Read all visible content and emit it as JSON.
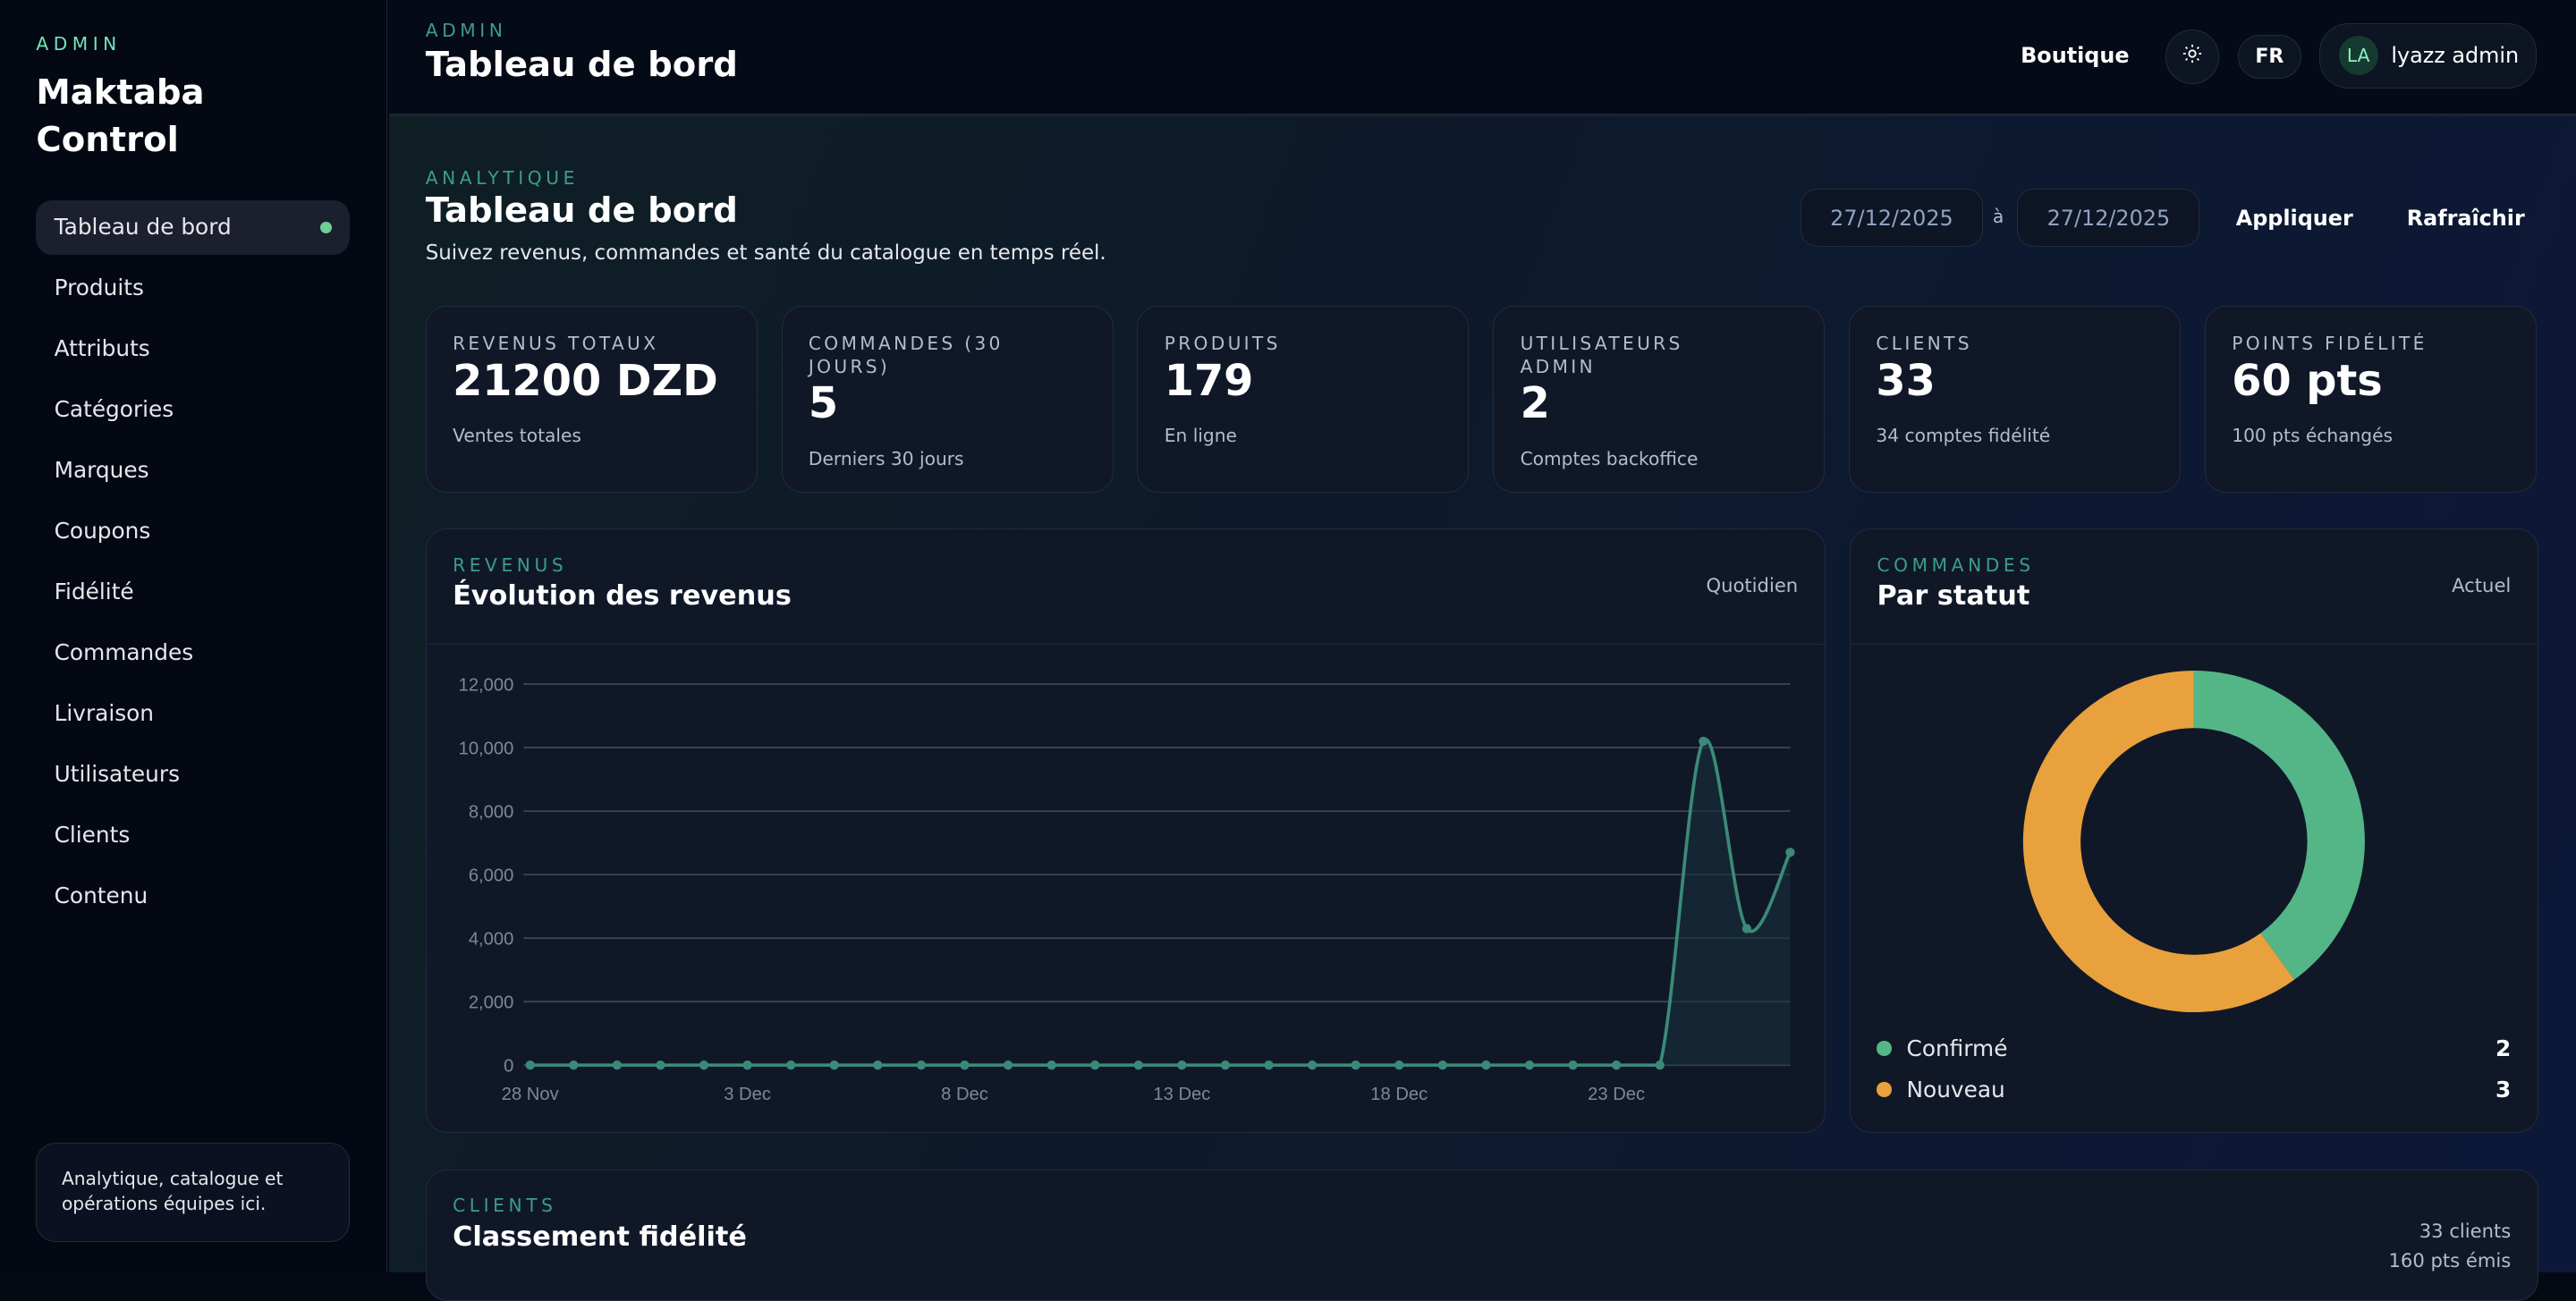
{
  "sidebar": {
    "kicker": "ADMIN",
    "title": "Maktaba Control",
    "items": [
      {
        "label": "Tableau de bord",
        "active": true
      },
      {
        "label": "Produits"
      },
      {
        "label": "Attributs"
      },
      {
        "label": "Catégories"
      },
      {
        "label": "Marques"
      },
      {
        "label": "Coupons"
      },
      {
        "label": "Fidélité"
      },
      {
        "label": "Commandes"
      },
      {
        "label": "Livraison"
      },
      {
        "label": "Utilisateurs"
      },
      {
        "label": "Clients"
      },
      {
        "label": "Contenu"
      }
    ],
    "note": "Analytique, catalogue et opérations équipes ici."
  },
  "topbar": {
    "kicker": "ADMIN",
    "title": "Tableau de bord",
    "shop": "Boutique",
    "theme_icon": "sun-icon",
    "lang": "FR",
    "user_initials": "LA",
    "user_name": "lyazz admin"
  },
  "page": {
    "kicker": "ANALYTIQUE",
    "title": "Tableau de bord",
    "subtitle": "Suivez revenus, commandes et santé du catalogue en temps réel.",
    "date_from": "27/12/2025",
    "date_sep": "à",
    "date_to": "27/12/2025",
    "apply": "Appliquer",
    "refresh": "Rafraîchir"
  },
  "kpis": [
    {
      "label": "REVENUS TOTAUX",
      "value": "21200 DZD",
      "sub": "Ventes totales"
    },
    {
      "label": "COMMANDES (30 JOURS)",
      "value": "5",
      "sub": "Derniers 30 jours"
    },
    {
      "label": "PRODUITS",
      "value": "179",
      "sub": "En ligne"
    },
    {
      "label": "UTILISATEURS ADMIN",
      "value": "2",
      "sub": "Comptes backoffice"
    },
    {
      "label": "CLIENTS",
      "value": "33",
      "sub": "34 comptes fidélité"
    },
    {
      "label": "POINTS FIDÉLITÉ",
      "value": "60 pts",
      "sub": "100 pts échangés"
    }
  ],
  "revenue": {
    "kicker": "REVENUS",
    "title": "Évolution des revenus",
    "meta": "Quotidien"
  },
  "orders": {
    "kicker": "COMMANDES",
    "title": "Par statut",
    "meta": "Actuel"
  },
  "loyalty": {
    "kicker": "CLIENTS",
    "title": "Classement fidélité",
    "meta1": "33 clients",
    "meta2": "160 pts émis"
  },
  "chart_data": [
    {
      "type": "area",
      "ylim": [
        0,
        12000
      ],
      "yticks": [
        "0",
        "2,000",
        "4,000",
        "6,000",
        "8,000",
        "10,000",
        "12,000"
      ],
      "xticks": [
        "28 Nov",
        "3 Dec",
        "8 Dec",
        "13 Dec",
        "18 Dec",
        "23 Dec"
      ],
      "x": [
        "28 Nov",
        "29 Nov",
        "30 Nov",
        "1 Dec",
        "2 Dec",
        "3 Dec",
        "4 Dec",
        "5 Dec",
        "6 Dec",
        "7 Dec",
        "8 Dec",
        "9 Dec",
        "10 Dec",
        "11 Dec",
        "12 Dec",
        "13 Dec",
        "14 Dec",
        "15 Dec",
        "16 Dec",
        "17 Dec",
        "18 Dec",
        "19 Dec",
        "20 Dec",
        "21 Dec",
        "22 Dec",
        "23 Dec",
        "24 Dec",
        "25 Dec",
        "26 Dec",
        "27 Dec"
      ],
      "values": [
        0,
        0,
        0,
        0,
        0,
        0,
        0,
        0,
        0,
        0,
        0,
        0,
        0,
        0,
        0,
        0,
        0,
        0,
        0,
        0,
        0,
        0,
        0,
        0,
        0,
        0,
        0,
        10200,
        4300,
        6700
      ],
      "color": "#3b8a78",
      "grid": true
    },
    {
      "type": "pie",
      "donut": true,
      "slices": [
        {
          "label": "Confirmé",
          "value": 2,
          "color": "#54b687"
        },
        {
          "label": "Nouveau",
          "value": 3,
          "color": "#e8a13c"
        }
      ]
    }
  ]
}
